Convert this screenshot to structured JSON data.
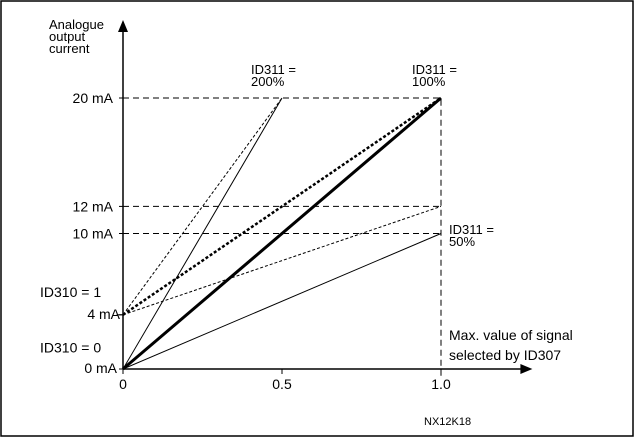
{
  "chart_data": {
    "type": "line",
    "title": "",
    "ylabel": [
      "Analogue",
      "output",
      "current"
    ],
    "xlabel": [
      "Max. value of signal",
      "selected by ID307"
    ],
    "xlim": [
      0,
      1.3
    ],
    "ylim": [
      0,
      26
    ],
    "x_ticks": [
      {
        "value": 0,
        "label": "0"
      },
      {
        "value": 0.5,
        "label": "0.5"
      },
      {
        "value": 1.0,
        "label": "1.0"
      }
    ],
    "y_ticks": [
      {
        "value": 0,
        "label": "0 mA"
      },
      {
        "value": 4,
        "label": "4 mA"
      },
      {
        "value": 10,
        "label": "10 mA"
      },
      {
        "value": 12,
        "label": "12 mA"
      },
      {
        "value": 20,
        "label": "20 mA"
      }
    ],
    "y_side_labels": [
      {
        "value": 1.6,
        "label": "ID310 = 0"
      },
      {
        "value": 5.7,
        "label": "ID310 = 1"
      }
    ],
    "series": [
      {
        "style": "bold",
        "x": [
          0,
          1.0
        ],
        "y": [
          0,
          20
        ]
      },
      {
        "style": "thin",
        "x": [
          0,
          0.5
        ],
        "y": [
          0,
          20
        ]
      },
      {
        "style": "thin",
        "x": [
          0,
          1.0
        ],
        "y": [
          0,
          10
        ]
      },
      {
        "style": "bold-dotted",
        "x": [
          0,
          1.0
        ],
        "y": [
          4,
          20
        ]
      },
      {
        "style": "dotted",
        "x": [
          0,
          0.5
        ],
        "y": [
          4,
          20
        ]
      },
      {
        "style": "dotted",
        "x": [
          0,
          1.0
        ],
        "y": [
          4,
          12
        ]
      }
    ],
    "reference_lines": [
      {
        "orientation": "h",
        "y": 20,
        "x_range": [
          0,
          1.0
        ]
      },
      {
        "orientation": "h",
        "y": 12,
        "x_range": [
          0,
          1.0
        ]
      },
      {
        "orientation": "h",
        "y": 10,
        "x_range": [
          0,
          1.0
        ]
      },
      {
        "orientation": "h",
        "y": 4,
        "x_range": [
          -0.02,
          0
        ]
      },
      {
        "orientation": "v",
        "x": 1.0,
        "y_range": [
          -0.5,
          20
        ]
      }
    ],
    "annotations": [
      {
        "x": 0.5,
        "y": 20,
        "lines": [
          "ID311 =",
          "200%"
        ]
      },
      {
        "x": 1.0,
        "y": 20,
        "lines": [
          "ID311 =",
          "100%"
        ]
      },
      {
        "x": 1.0,
        "y": 10,
        "lines": [
          "ID311 =",
          "50%"
        ]
      }
    ],
    "grid": false,
    "legend": "none",
    "footer_code": "NX12K18"
  }
}
